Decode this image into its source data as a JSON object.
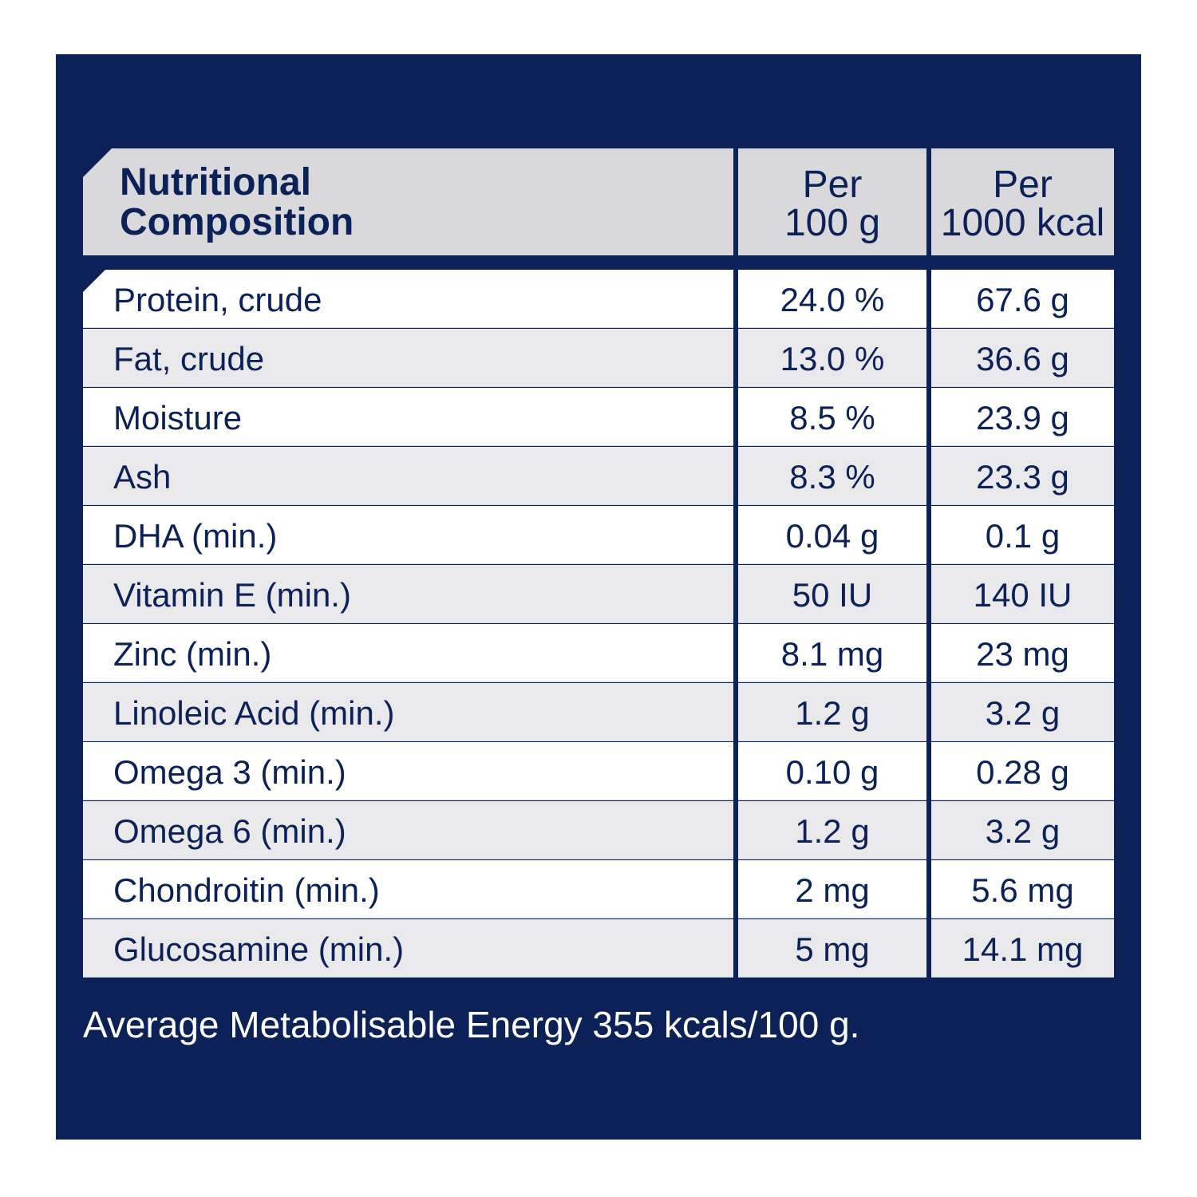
{
  "header": {
    "name_line1": "Nutritional",
    "name_line2": "Composition",
    "col1_line1": "Per",
    "col1_line2": "100 g",
    "col2_line1": "Per",
    "col2_line2": "1000 kcal"
  },
  "rows": [
    {
      "name": "Protein, crude",
      "per_100g": "24.0 %",
      "per_1000kcal": "67.6 g"
    },
    {
      "name": "Fat, crude",
      "per_100g": "13.0 %",
      "per_1000kcal": "36.6 g"
    },
    {
      "name": "Moisture",
      "per_100g": "8.5 %",
      "per_1000kcal": "23.9 g"
    },
    {
      "name": "Ash",
      "per_100g": "8.3 %",
      "per_1000kcal": "23.3 g"
    },
    {
      "name": "DHA (min.)",
      "per_100g": "0.04 g",
      "per_1000kcal": "0.1 g"
    },
    {
      "name": "Vitamin E (min.)",
      "per_100g": "50 IU",
      "per_1000kcal": "140 IU"
    },
    {
      "name": "Zinc (min.)",
      "per_100g": "8.1 mg",
      "per_1000kcal": "23 mg"
    },
    {
      "name": "Linoleic Acid (min.)",
      "per_100g": "1.2 g",
      "per_1000kcal": "3.2 g"
    },
    {
      "name": "Omega 3 (min.)",
      "per_100g": "0.10 g",
      "per_1000kcal": "0.28 g"
    },
    {
      "name": "Omega 6 (min.)",
      "per_100g": "1.2 g",
      "per_1000kcal": "3.2 g"
    },
    {
      "name": "Chondroitin (min.)",
      "per_100g": "2 mg",
      "per_1000kcal": "5.6 mg"
    },
    {
      "name": "Glucosamine (min.)",
      "per_100g": "5 mg",
      "per_1000kcal": "14.1 mg"
    }
  ],
  "footer": "Average Metabolisable Energy 355 kcals/100 g.",
  "colors": {
    "panel": "#0b2158",
    "header_bg": "#d9d9dc",
    "row_alt": "#e9e9ec",
    "text": "#0b2158"
  }
}
